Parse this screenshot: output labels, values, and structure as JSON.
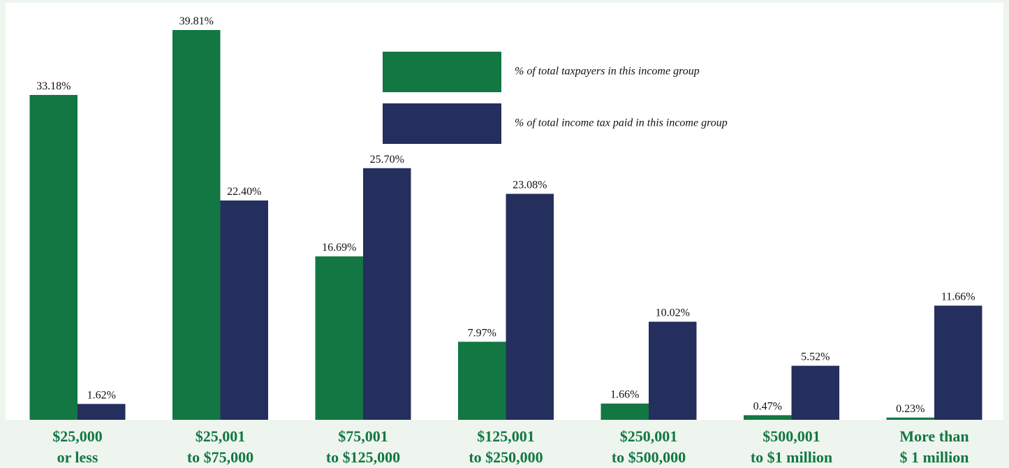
{
  "chart_data": {
    "type": "bar",
    "categories": [
      [
        "$25,000",
        "or less"
      ],
      [
        "$25,001",
        "to $75,000"
      ],
      [
        "$75,001",
        "to $125,000"
      ],
      [
        "$125,001",
        "to $250,000"
      ],
      [
        "$250,001",
        "to $500,000"
      ],
      [
        "$500,001",
        "to $1 million"
      ],
      [
        "More than",
        "$ 1 million"
      ]
    ],
    "series": [
      {
        "name": "% of total taxpayers in this income group",
        "color": "#127743",
        "values": [
          33.18,
          39.81,
          16.69,
          7.97,
          1.66,
          0.47,
          0.23
        ],
        "value_labels": [
          "33.18%",
          "39.81%",
          "16.69%",
          "7.97%",
          "1.66%",
          "0.47%",
          "0.23%"
        ]
      },
      {
        "name": "% of total income tax paid in this income group",
        "color": "#252f5e",
        "values": [
          1.62,
          22.4,
          25.7,
          23.08,
          10.02,
          5.52,
          11.66
        ],
        "value_labels": [
          "1.62%",
          "22.40%",
          "25.70%",
          "23.08%",
          "10.02%",
          "5.52%",
          "11.66%"
        ]
      }
    ]
  }
}
